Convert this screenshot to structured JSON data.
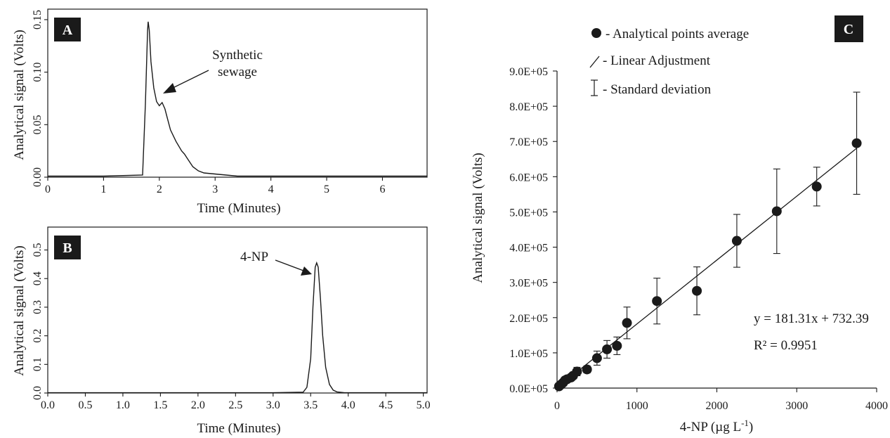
{
  "chart_data": [
    {
      "panel": "A",
      "type": "line",
      "xlabel": "Time (Minutes)",
      "ylabel": "Analytical signal (Volts)",
      "xlim": [
        0,
        6.8
      ],
      "ylim": [
        0,
        0.16
      ],
      "xticks": [
        0,
        1,
        2,
        3,
        4,
        5,
        6
      ],
      "yticks": [
        "0.00",
        "0.05",
        "0.10",
        "0.15"
      ],
      "annotation": [
        "Synthetic",
        "sewage"
      ],
      "x": [
        0,
        1.0,
        1.7,
        1.75,
        1.79,
        1.8,
        1.82,
        1.85,
        1.9,
        1.95,
        2.0,
        2.05,
        2.1,
        2.15,
        2.2,
        2.3,
        2.4,
        2.45,
        2.5,
        2.6,
        2.7,
        2.8,
        3.0,
        3.2,
        3.4,
        6.8
      ],
      "y": [
        0.001,
        0.001,
        0.002,
        0.07,
        0.14,
        0.148,
        0.14,
        0.11,
        0.085,
        0.072,
        0.068,
        0.071,
        0.065,
        0.055,
        0.045,
        0.034,
        0.025,
        0.022,
        0.018,
        0.01,
        0.006,
        0.004,
        0.003,
        0.002,
        0.001,
        0.001
      ]
    },
    {
      "panel": "B",
      "type": "line",
      "xlabel": "Time (Minutes)",
      "ylabel": "Analytical signal (Volts)",
      "xlim": [
        0,
        5.05
      ],
      "ylim": [
        0,
        0.58
      ],
      "xticks": [
        "0.0",
        "0.5",
        "1.0",
        "1.5",
        "2.0",
        "2.5",
        "3.0",
        "3.5",
        "4.0",
        "4.5",
        "5.0"
      ],
      "yticks": [
        "0.0",
        "0.1",
        "0.2",
        "0.3",
        "0.4",
        "0.5"
      ],
      "annotation": "4-NP",
      "x": [
        0,
        3.0,
        3.4,
        3.45,
        3.5,
        3.53,
        3.56,
        3.58,
        3.6,
        3.63,
        3.66,
        3.7,
        3.75,
        3.8,
        3.85,
        3.95,
        5.05
      ],
      "y": [
        0.001,
        0.001,
        0.003,
        0.02,
        0.12,
        0.3,
        0.44,
        0.455,
        0.44,
        0.33,
        0.2,
        0.09,
        0.03,
        0.01,
        0.004,
        0.001,
        0.001
      ]
    },
    {
      "panel": "C",
      "type": "scatter",
      "xlabel": "4-NP (µg L",
      "xlabel_sup": "-1",
      "xlabel_end": ")",
      "ylabel": "Analytical signal (Volts)",
      "xlim": [
        0,
        4000
      ],
      "ylim": [
        0,
        900000
      ],
      "xticks": [
        "0",
        "1000",
        "2000",
        "3000",
        "4000"
      ],
      "yticks": [
        "0.0E+05",
        "1.0E+05",
        "2.0E+05",
        "3.0E+05",
        "4.0E+05",
        "5.0E+05",
        "6.0E+05",
        "7.0E+05",
        "8.0E+05",
        "9.0E+05"
      ],
      "legend": [
        {
          "symbol": "dot",
          "label": "- Analytical points average"
        },
        {
          "symbol": "line",
          "label": "- Linear Adjustment"
        },
        {
          "symbol": "errorbar",
          "label": "- Standard deviation"
        }
      ],
      "equation": "y = 181.31x + 732.39",
      "r_squared": "R² = 0.9951",
      "fit": {
        "slope": 181.31,
        "intercept": 732.39,
        "x_range": [
          0,
          3750
        ]
      },
      "points": [
        {
          "x": 25,
          "y": 5000,
          "err": 3000
        },
        {
          "x": 50,
          "y": 10000,
          "err": 4000
        },
        {
          "x": 75,
          "y": 15000,
          "err": 5000
        },
        {
          "x": 100,
          "y": 22000,
          "err": 6000
        },
        {
          "x": 125,
          "y": 25000,
          "err": 6000
        },
        {
          "x": 175,
          "y": 30000,
          "err": 8000
        },
        {
          "x": 200,
          "y": 35000,
          "err": 8000
        },
        {
          "x": 250,
          "y": 47000,
          "err": 12000
        },
        {
          "x": 375,
          "y": 53000,
          "err": 10000
        },
        {
          "x": 500,
          "y": 85000,
          "err": 20000
        },
        {
          "x": 625,
          "y": 110000,
          "err": 25000
        },
        {
          "x": 750,
          "y": 120000,
          "err": 25000
        },
        {
          "x": 875,
          "y": 185000,
          "err": 45000
        },
        {
          "x": 1250,
          "y": 247000,
          "err": 65000
        },
        {
          "x": 1750,
          "y": 276000,
          "err": 68000
        },
        {
          "x": 2250,
          "y": 418000,
          "err": 75000
        },
        {
          "x": 2750,
          "y": 502000,
          "err": 120000
        },
        {
          "x": 3250,
          "y": 572000,
          "err": 55000
        },
        {
          "x": 3750,
          "y": 695000,
          "err": 145000
        }
      ]
    }
  ],
  "badges": {
    "a": "A",
    "b": "B",
    "c": "C"
  }
}
